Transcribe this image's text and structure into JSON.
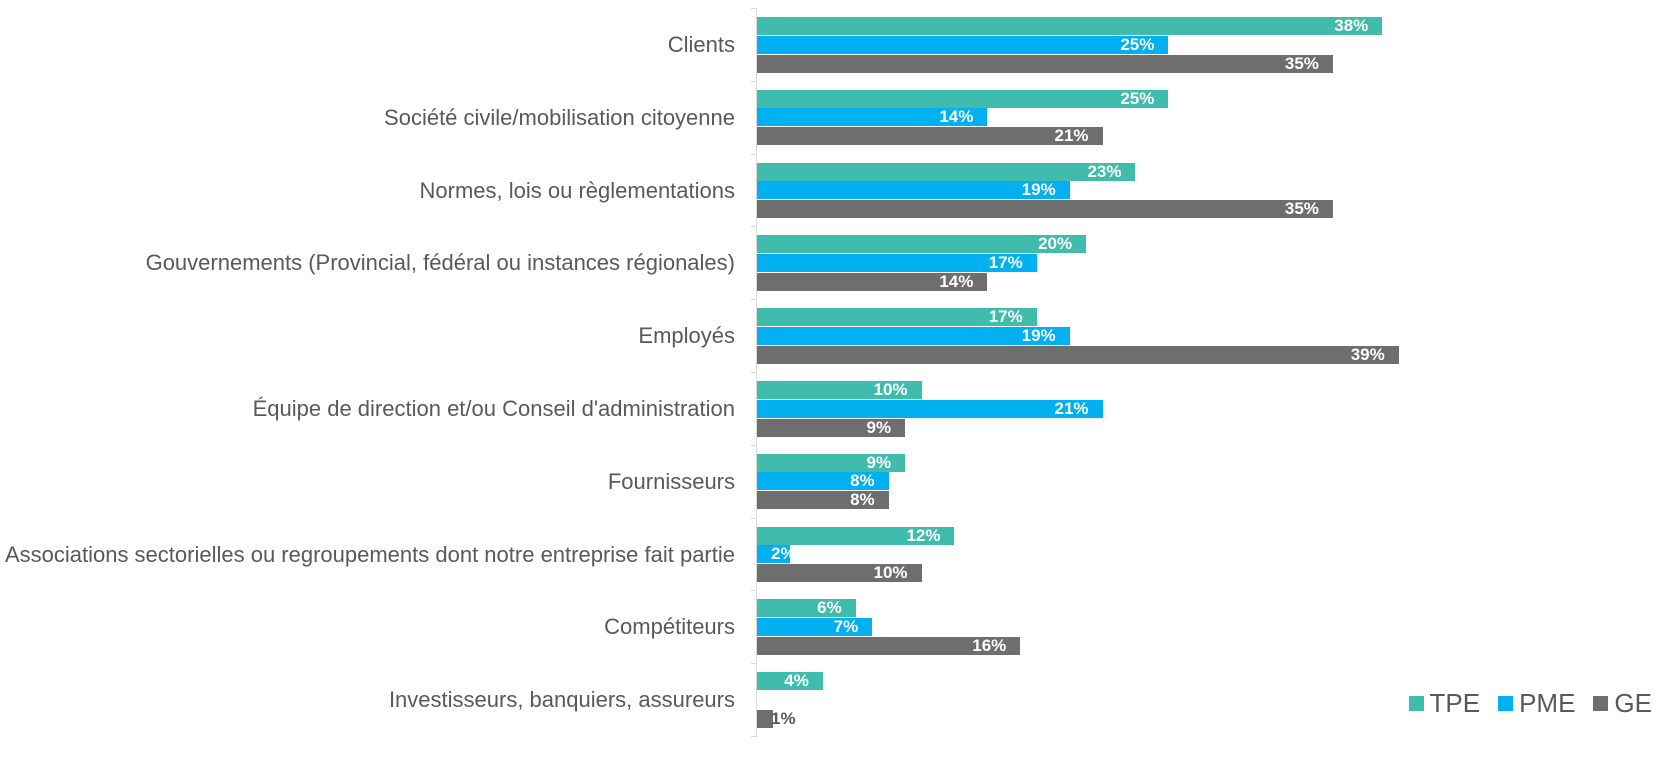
{
  "chart_data": {
    "type": "bar",
    "orientation": "horizontal",
    "categories": [
      "Clients",
      "Société civile/mobilisation citoyenne",
      "Normes, lois ou règlementations",
      "Gouvernements (Provincial, fédéral ou instances régionales)",
      "Employés",
      "Équipe de direction et/ou Conseil d'administration",
      "Fournisseurs",
      "Associations sectorielles ou regroupements dont notre entreprise fait partie",
      "Compétiteurs",
      "Investisseurs, banquiers, assureurs"
    ],
    "series": [
      {
        "name": "TPE",
        "color": "#3fbcab",
        "values": [
          38,
          25,
          23,
          20,
          17,
          10,
          9,
          12,
          6,
          4
        ],
        "value_labels": [
          "38%",
          "25%",
          "23%",
          "20%",
          "17%",
          "10%",
          "9%",
          "12%",
          "6%",
          "4%"
        ]
      },
      {
        "name": "PME",
        "color": "#00b0f0",
        "values": [
          25,
          14,
          19,
          17,
          19,
          21,
          8,
          2,
          7,
          null
        ],
        "value_labels": [
          "25%",
          "14%",
          "19%",
          "17%",
          "19%",
          "21%",
          "8%",
          "2%",
          "7%",
          null
        ]
      },
      {
        "name": "GE",
        "color": "#6e6e6e",
        "values": [
          35,
          21,
          35,
          14,
          39,
          9,
          8,
          10,
          16,
          1
        ],
        "value_labels": [
          "35%",
          "21%",
          "35%",
          "14%",
          "39%",
          "9%",
          "8%",
          "10%",
          "16%",
          "1%"
        ]
      }
    ],
    "xlim": [
      0,
      55
    ],
    "legend": "bottom-right"
  }
}
